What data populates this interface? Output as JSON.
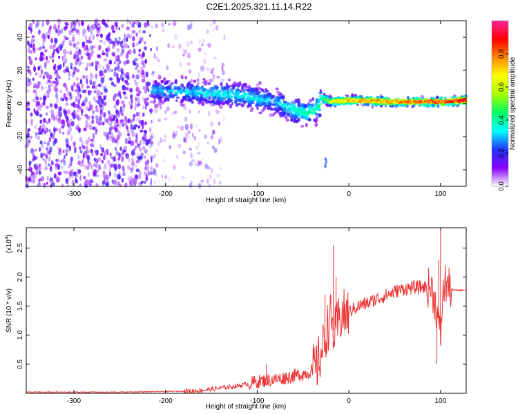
{
  "title": "C2E1.2025.321.11.14.R22",
  "chart_data": [
    {
      "type": "heatmap",
      "name": "spectrogram",
      "xlabel": "Height of straight line (km)",
      "ylabel": "Frequency (Hz)",
      "xlim": [
        -352,
        128
      ],
      "ylim": [
        -50,
        50
      ],
      "xticks": [
        -300,
        -200,
        -100,
        0,
        100
      ],
      "yticks": [
        -40,
        -20,
        0,
        20,
        40
      ],
      "colorbar": {
        "label": "Normalized spectral amplitude",
        "range": [
          0,
          1
        ],
        "ticks": [
          0.0,
          0.2,
          0.4,
          0.6,
          0.8
        ],
        "tick_labels": [
          "0.0",
          "0.2",
          "0.4",
          "0.6",
          "0.8"
        ],
        "colormap": [
          "#ffffff",
          "#8a00ff",
          "#2233ff",
          "#00ffff",
          "#00ff66",
          "#a8ff00",
          "#ffff00",
          "#ff8800",
          "#ff0000",
          "#ff2299"
        ]
      },
      "ridge": {
        "x": [
          -215,
          -180,
          -150,
          -120,
          -100,
          -80,
          -60,
          -45,
          -35,
          -28,
          -20,
          0,
          50,
          100,
          128
        ],
        "y": [
          8,
          7,
          6,
          5,
          3,
          1,
          -4,
          -6,
          -3,
          3,
          1,
          2,
          1,
          1,
          2
        ],
        "amplitude": [
          0.3,
          0.32,
          0.35,
          0.35,
          0.35,
          0.3,
          0.4,
          0.42,
          0.4,
          0.55,
          0.6,
          0.7,
          0.75,
          0.8,
          0.9
        ]
      },
      "noise_region": {
        "x": [
          -352,
          -215
        ],
        "amplitude": [
          0.05,
          0.2
        ]
      },
      "secondary_blob": {
        "x": -25,
        "y": -35,
        "amplitude": 0.12
      }
    },
    {
      "type": "line",
      "name": "snr",
      "xlabel": "Height of straight line (km)",
      "ylabel": "SNR (10 * v/v)",
      "multiplier_label": "(x10",
      "multiplier_exp": "4",
      "multiplier_close": ")",
      "xlim": [
        -352,
        128
      ],
      "ylim": [
        0,
        2.85
      ],
      "xticks": [
        -300,
        -200,
        -100,
        0,
        100
      ],
      "yticks": [
        0.5,
        1.0,
        1.5,
        2.0,
        2.5
      ],
      "ytick_labels": [
        "0.5",
        "1.0",
        "1.5",
        "2.0",
        "2.5"
      ],
      "color": "#ee3333",
      "series": [
        {
          "name": "SNR",
          "x": [
            -352,
            -250,
            -200,
            -170,
            -150,
            -120,
            -100,
            -80,
            -60,
            -45,
            -35,
            -28,
            -24,
            -20,
            -16,
            -12,
            -8,
            -4,
            0,
            10,
            20,
            30,
            40,
            50,
            60,
            70,
            80,
            90,
            95,
            98,
            100,
            102,
            105,
            110,
            115,
            128
          ],
          "y": [
            0.02,
            0.02,
            0.03,
            0.04,
            0.07,
            0.13,
            0.2,
            0.24,
            0.3,
            0.35,
            0.45,
            0.8,
            1.1,
            1.3,
            1.0,
            1.2,
            1.35,
            1.35,
            1.4,
            1.5,
            1.55,
            1.62,
            1.68,
            1.75,
            1.8,
            1.82,
            1.83,
            1.82,
            1.5,
            1.2,
            0.95,
            1.6,
            1.9,
            1.8,
            1.77,
            1.78
          ]
        }
      ],
      "spikes": [
        {
          "x": -17,
          "y": 2.55
        },
        {
          "x": -14,
          "y": 2.0
        },
        {
          "x": -26,
          "y": 1.7
        },
        {
          "x": 100,
          "y": 2.82
        },
        {
          "x": 98,
          "y": 2.3
        },
        {
          "x": 96,
          "y": 0.5
        },
        {
          "x": 100,
          "y": 0.85
        },
        {
          "x": -90,
          "y": 0.5
        }
      ]
    }
  ]
}
